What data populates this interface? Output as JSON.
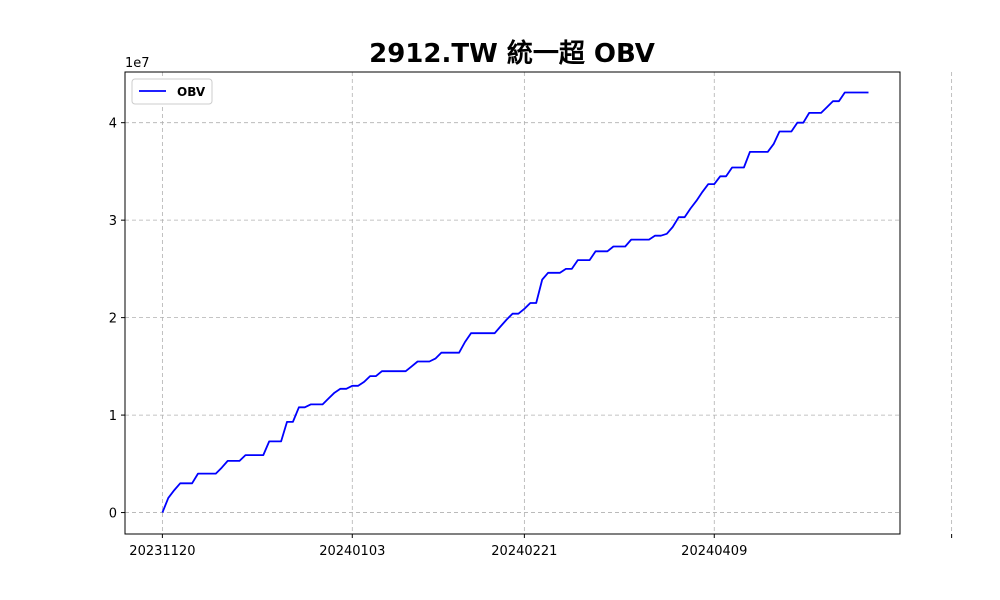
{
  "chart_data": {
    "type": "line",
    "title": "2912.TW 統一超 OBV",
    "xlabel": "",
    "ylabel": "",
    "y_scale_label": "1e7",
    "x_tick_labels": [
      "20231120",
      "20240103",
      "20240221",
      "20240409"
    ],
    "x_tick_positions": [
      0,
      32,
      61,
      93
    ],
    "y_ticks": [
      0,
      1,
      2,
      3,
      4
    ],
    "ylim": [
      -0.22,
      4.52
    ],
    "xlim": [
      -6.3,
      124.3
    ],
    "grid": true,
    "grid_style": "dashed",
    "legend_position": "top-left",
    "series": [
      {
        "name": "OBV",
        "color": "#0000ff",
        "x": [
          0,
          1,
          2,
          3,
          4,
          5,
          6,
          7,
          8,
          9,
          10,
          11,
          12,
          13,
          14,
          15,
          16,
          17,
          18,
          19,
          20,
          21,
          22,
          23,
          24,
          25,
          26,
          27,
          28,
          29,
          30,
          31,
          32,
          33,
          34,
          35,
          36,
          37,
          38,
          39,
          40,
          41,
          42,
          43,
          44,
          45,
          46,
          47,
          48,
          49,
          50,
          51,
          52,
          53,
          54,
          55,
          56,
          57,
          58,
          59,
          60,
          61,
          62,
          63,
          64,
          65,
          66,
          67,
          68,
          69,
          70,
          71,
          72,
          73,
          74,
          75,
          76,
          77,
          78,
          79,
          80,
          81,
          82,
          83,
          84,
          85,
          86,
          87,
          88,
          89,
          90,
          91,
          92,
          93,
          94,
          95,
          96,
          97,
          98,
          99,
          100,
          101,
          102,
          103,
          104,
          105,
          106,
          107,
          108,
          109,
          110,
          111,
          112,
          113,
          114,
          115,
          116,
          117,
          118,
          119
        ],
        "values": [
          0.0,
          0.15,
          0.23,
          0.3,
          0.3,
          0.3,
          0.4,
          0.4,
          0.4,
          0.4,
          0.46,
          0.53,
          0.53,
          0.53,
          0.59,
          0.59,
          0.59,
          0.59,
          0.73,
          0.73,
          0.73,
          0.93,
          0.93,
          1.08,
          1.08,
          1.11,
          1.11,
          1.11,
          1.17,
          1.23,
          1.27,
          1.27,
          1.3,
          1.3,
          1.34,
          1.4,
          1.4,
          1.45,
          1.45,
          1.45,
          1.45,
          1.45,
          1.5,
          1.55,
          1.55,
          1.55,
          1.58,
          1.64,
          1.64,
          1.64,
          1.64,
          1.75,
          1.84,
          1.84,
          1.84,
          1.84,
          1.84,
          1.91,
          1.98,
          2.04,
          2.04,
          2.09,
          2.15,
          2.15,
          2.39,
          2.46,
          2.46,
          2.46,
          2.5,
          2.5,
          2.59,
          2.59,
          2.59,
          2.68,
          2.68,
          2.68,
          2.73,
          2.73,
          2.73,
          2.8,
          2.8,
          2.8,
          2.8,
          2.84,
          2.84,
          2.86,
          2.93,
          3.03,
          3.03,
          3.12,
          3.2,
          3.29,
          3.37,
          3.37,
          3.45,
          3.45,
          3.54,
          3.54,
          3.54,
          3.7,
          3.7,
          3.7,
          3.7,
          3.78,
          3.91,
          3.91,
          3.91,
          4.0,
          4.0,
          4.1,
          4.1,
          4.1,
          4.16,
          4.22,
          4.22,
          4.31,
          4.31,
          4.31,
          4.31,
          4.31
        ]
      }
    ]
  }
}
